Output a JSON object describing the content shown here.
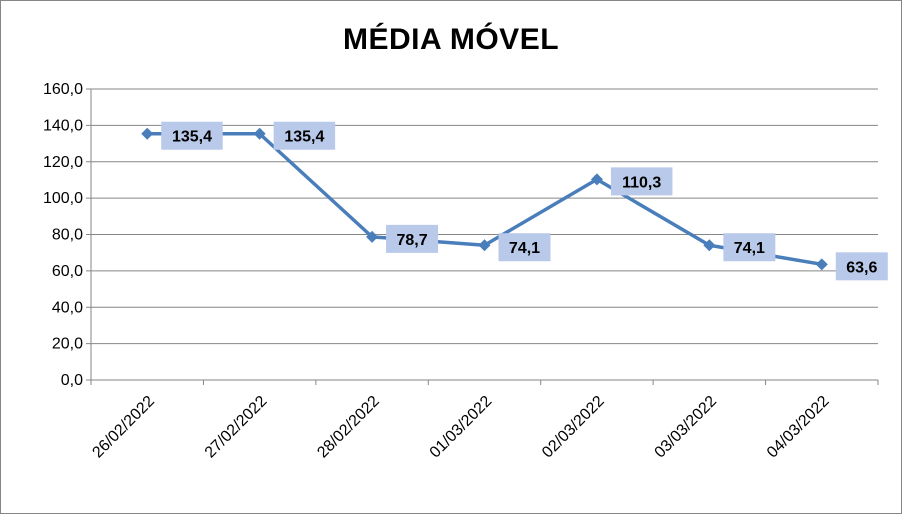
{
  "chart_data": {
    "type": "line",
    "title": "MÉDIA MÓVEL",
    "categories": [
      "26/02/2022",
      "27/02/2022",
      "28/02/2022",
      "01/03/2022",
      "02/03/2022",
      "03/03/2022",
      "04/03/2022"
    ],
    "series": [
      {
        "values": [
          135.4,
          135.4,
          78.7,
          74.1,
          110.3,
          74.1,
          63.6
        ],
        "labels": [
          "135,4",
          "135,4",
          "78,7",
          "74,1",
          "110,3",
          "74,1",
          "63,6"
        ],
        "color": "#4A7EBB",
        "marker": "diamond"
      }
    ],
    "ylim": [
      0,
      160
    ],
    "yticks": [
      0,
      20,
      40,
      60,
      80,
      100,
      120,
      140,
      160
    ],
    "ytick_labels": [
      "0,0",
      "20,0",
      "40,0",
      "60,0",
      "80,0",
      "100,0",
      "120,0",
      "140,0",
      "160,0"
    ],
    "grid": true,
    "legend": false,
    "data_label_background": "#B9C9EA",
    "gridline_color": "#868686"
  }
}
